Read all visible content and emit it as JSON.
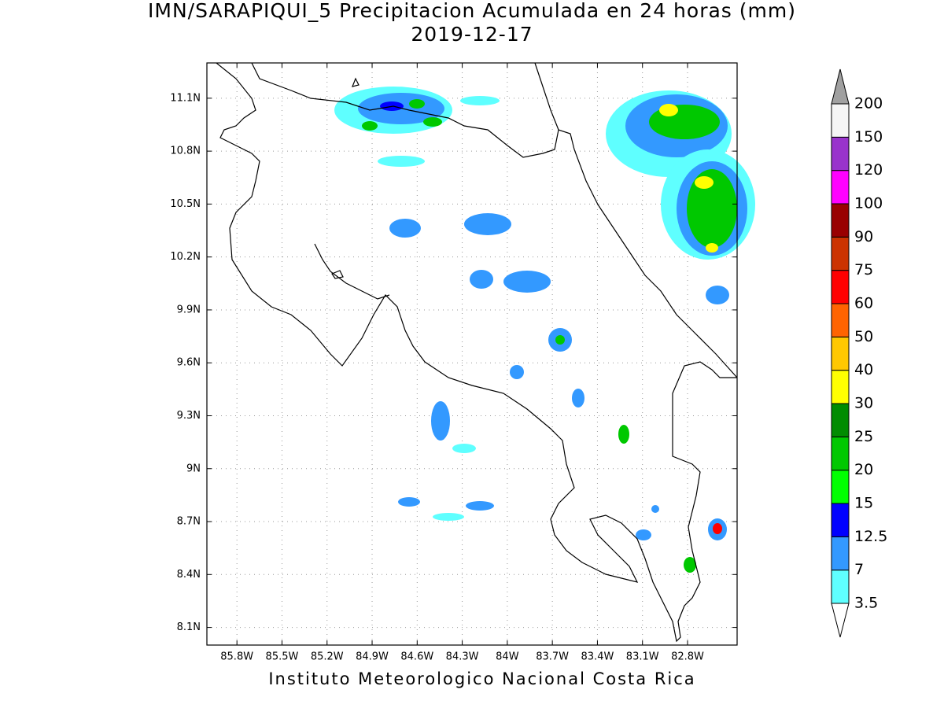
{
  "title": "IMN/SARAPIQUI_5 Precipitacion Acumulada en 24 horas (mm)",
  "subtitle": "2019-12-17",
  "footer": "Instituto Meteorologico Nacional Costa Rica",
  "map": {
    "xlim": [
      -86.0,
      -82.47
    ],
    "ylim": [
      8.0,
      11.3
    ],
    "xticks": [
      {
        "value": -85.8,
        "label": "85.8W"
      },
      {
        "value": -85.5,
        "label": "85.5W"
      },
      {
        "value": -85.2,
        "label": "85.2W"
      },
      {
        "value": -84.9,
        "label": "84.9W"
      },
      {
        "value": -84.6,
        "label": "84.6W"
      },
      {
        "value": -84.3,
        "label": "84.3W"
      },
      {
        "value": -84.0,
        "label": "84W"
      },
      {
        "value": -83.7,
        "label": "83.7W"
      },
      {
        "value": -83.4,
        "label": "83.4W"
      },
      {
        "value": -83.1,
        "label": "83.1W"
      },
      {
        "value": -82.8,
        "label": "82.8W"
      }
    ],
    "yticks": [
      {
        "value": 8.1,
        "label": "8.1N"
      },
      {
        "value": 8.4,
        "label": "8.4N"
      },
      {
        "value": 8.7,
        "label": "8.7N"
      },
      {
        "value": 9.0,
        "label": "9N"
      },
      {
        "value": 9.3,
        "label": "9.3N"
      },
      {
        "value": 9.6,
        "label": "9.6N"
      },
      {
        "value": 9.9,
        "label": "9.9N"
      },
      {
        "value": 10.2,
        "label": "10.2N"
      },
      {
        "value": 10.5,
        "label": "10.5N"
      },
      {
        "value": 10.8,
        "label": "10.8N"
      },
      {
        "value": 11.1,
        "label": "11.1N"
      }
    ],
    "grid": true
  },
  "colorbar": {
    "levels": [
      3.5,
      7,
      12.5,
      15,
      20,
      25,
      30,
      40,
      50,
      60,
      75,
      90,
      100,
      120,
      150,
      200
    ],
    "colors": [
      "#5fffff",
      "#3399ff",
      "#0000ff",
      "#00ff00",
      "#00c800",
      "#008c00",
      "#ffff00",
      "#ffc800",
      "#ff6400",
      "#ff0000",
      "#cc3300",
      "#990000",
      "#ff00ff",
      "#9933cc",
      "#f5f5f5"
    ],
    "under_color": "#ffffff",
    "over_color": "#a0a0a0"
  }
}
